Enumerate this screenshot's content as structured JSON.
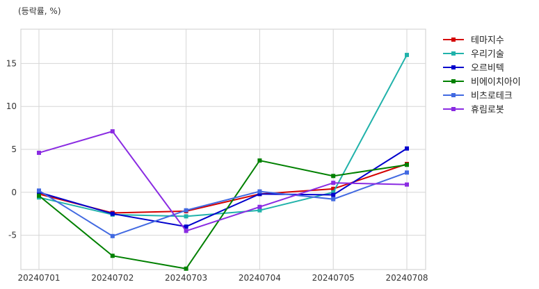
{
  "chart_data": {
    "type": "line",
    "unit_label": "(등락률, %)",
    "categories": [
      "20240701",
      "20240702",
      "20240703",
      "20240704",
      "20240705",
      "20240708"
    ],
    "ylim": [
      -9,
      19
    ],
    "yticks": [
      -5,
      0,
      5,
      10,
      15
    ],
    "grid": true,
    "legend_position": "right-top",
    "series": [
      {
        "name": "테마지수",
        "color": "#d40000",
        "values": [
          -0.2,
          -2.4,
          -2.2,
          -0.2,
          0.4,
          3.3
        ]
      },
      {
        "name": "우리기술",
        "color": "#20b2aa",
        "values": [
          -0.6,
          -2.6,
          -2.8,
          -2.1,
          0.0,
          16.0
        ]
      },
      {
        "name": "오르비텍",
        "color": "#0000cc",
        "values": [
          0.0,
          -2.5,
          -4.0,
          -0.2,
          -0.3,
          5.1
        ]
      },
      {
        "name": "비에이치아이",
        "color": "#008000",
        "values": [
          -0.4,
          -7.4,
          -8.9,
          3.7,
          1.9,
          3.2
        ]
      },
      {
        "name": "비츠로테크",
        "color": "#4169e1",
        "values": [
          0.2,
          -5.1,
          -2.1,
          0.1,
          -0.8,
          2.3
        ]
      },
      {
        "name": "휴림로봇",
        "color": "#8a2be2",
        "values": [
          4.6,
          7.1,
          -4.5,
          -1.7,
          1.1,
          0.9
        ]
      }
    ]
  }
}
